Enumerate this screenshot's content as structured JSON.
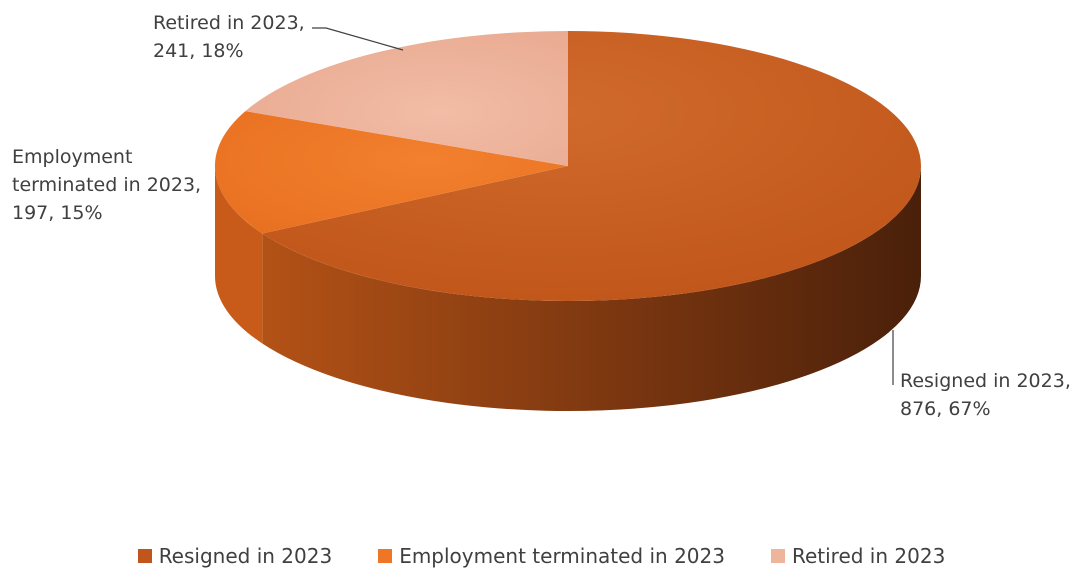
{
  "chart_data": {
    "type": "pie",
    "style": "3d",
    "title": "",
    "legend_position": "bottom",
    "slices": [
      {
        "category": "Resigned in 2023",
        "value": 876,
        "percent": 67,
        "color": "#C0561B",
        "label_lines": [
          "Resigned in 2023,",
          "876, 67%"
        ]
      },
      {
        "category": "Employment terminated in 2023",
        "value": 197,
        "percent": 15,
        "color": "#EE7624",
        "label_lines": [
          "Employment",
          "terminated in 2023,",
          "197, 15%"
        ]
      },
      {
        "category": "Retired in 2023",
        "value": 241,
        "percent": 18,
        "color": "#EFB49C",
        "label_lines": [
          "Retired in 2023,",
          "241, 18%"
        ]
      }
    ]
  }
}
